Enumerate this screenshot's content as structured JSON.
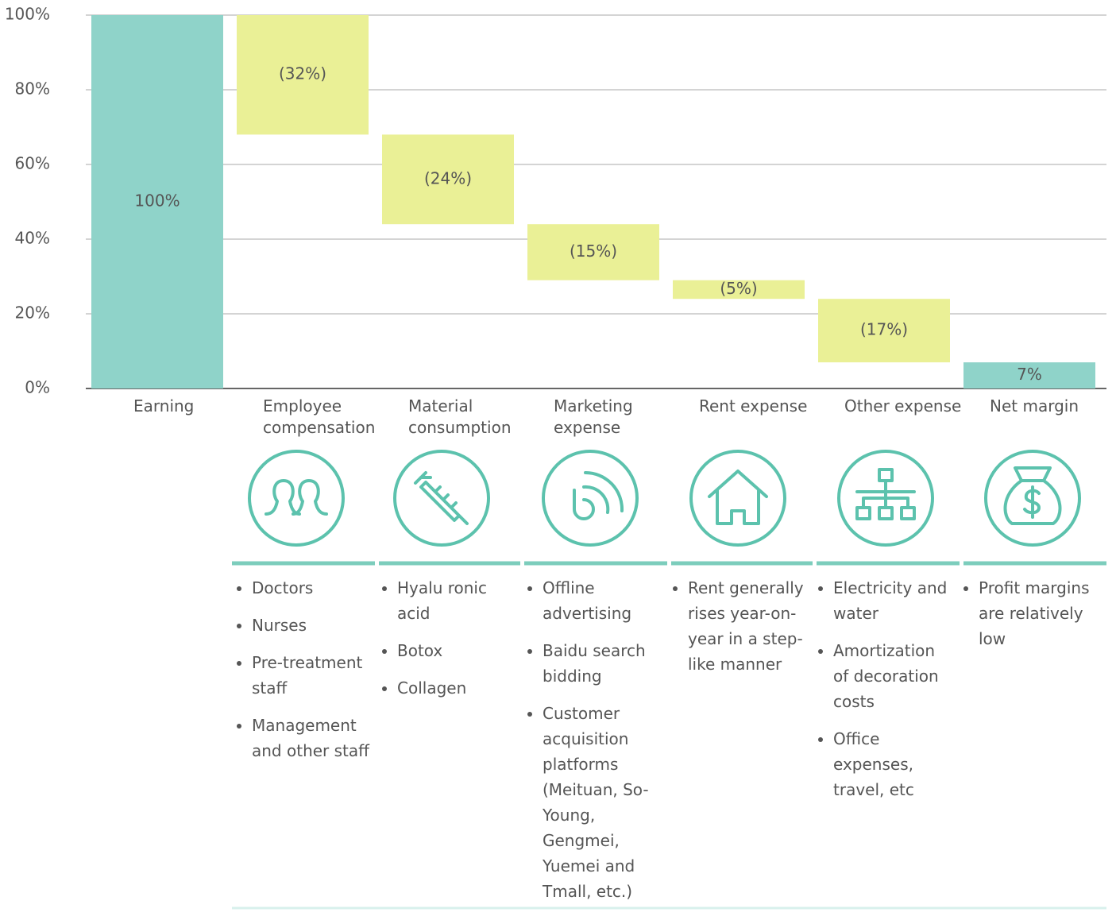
{
  "chart_data": {
    "type": "waterfall",
    "categories": [
      "Earning",
      "Employee compensation",
      "Material consumption",
      "Marketing expense",
      "Rent expense",
      "Other expense",
      "Net margin"
    ],
    "values": [
      100,
      -32,
      -24,
      -15,
      -5,
      -17,
      7
    ],
    "value_labels": [
      "100%",
      "(32%)",
      "(24%)",
      "(15%)",
      "(5%)",
      "(17%)",
      "7%"
    ],
    "total_color": "#8fd3c9",
    "decrease_color": "#eaf096",
    "ylim": [
      0,
      100
    ],
    "yticks": [
      {
        "value": 0,
        "label": "0%"
      },
      {
        "value": 20,
        "label": "20%"
      },
      {
        "value": 40,
        "label": "40%"
      },
      {
        "value": 60,
        "label": "60%"
      },
      {
        "value": 80,
        "label": "80%"
      },
      {
        "value": 100,
        "label": "100%"
      }
    ],
    "grid": true
  },
  "details": [
    [],
    [
      "Doctors",
      "Nurses",
      "Pre-treatment staff",
      "Management and other staff"
    ],
    [
      "Hyalu ronic acid",
      "Botox",
      "Collagen"
    ],
    [
      "Offline advertising",
      "Baidu search bidding",
      "Customer acquisition platforms (Meituan, So-Young, Gengmei, Yuemei and Tmall, etc.)"
    ],
    [
      "Rent generally rises year-on-year in a step-like manner"
    ],
    [
      "Electricity and water",
      "Amortization of decoration costs",
      "Office expenses, travel, etc"
    ],
    [
      "Profit margins are relatively low"
    ]
  ]
}
